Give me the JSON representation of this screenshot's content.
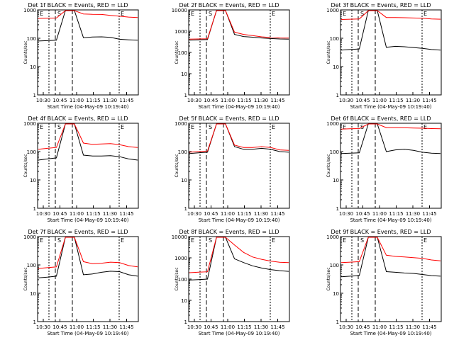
{
  "chart_data": [
    {
      "type": "line",
      "title": "Det 1f BLACK = Events, RED = LLD",
      "xlabel": "Start Time (04-May-09 10:19:40)",
      "ylabel": "Counts/sec",
      "yscale": "log",
      "ylim": [
        1,
        1000
      ],
      "xticks": [
        "10:30",
        "10:45",
        "11:00",
        "11:15",
        "11:30",
        "11:45"
      ],
      "yticks": [
        "1",
        "10",
        "100",
        "1000"
      ],
      "markers": [
        "E",
        "S",
        "E"
      ],
      "series": [
        {
          "color": "#000000",
          "values": [
            80,
            82,
            85,
            1200,
            1200,
            105,
            110,
            112,
            108,
            92,
            88,
            85
          ]
        },
        {
          "color": "#ff0000",
          "values": [
            500,
            510,
            520,
            1200,
            1200,
            720,
            700,
            690,
            640,
            600,
            560,
            540
          ]
        }
      ]
    },
    {
      "type": "line",
      "title": "Det 2f BLACK = Events, RED = LLD",
      "xlabel": "Start Time (04-May-09 10:19:40)",
      "ylabel": "Counts/sec",
      "yscale": "log",
      "ylim": [
        1,
        10000
      ],
      "xticks": [
        "10:30",
        "10:45",
        "11:00",
        "11:15",
        "11:30",
        "11:45"
      ],
      "yticks": [
        "1",
        "10",
        "100",
        "1000",
        "10000"
      ],
      "markers": [
        "E",
        "S",
        "E"
      ],
      "series": [
        {
          "color": "#000000",
          "values": [
            380,
            390,
            400,
            12000,
            12000,
            700,
            560,
            520,
            480,
            450,
            430,
            420
          ]
        },
        {
          "color": "#ff0000",
          "values": [
            420,
            430,
            440,
            12000,
            12000,
            900,
            700,
            620,
            540,
            500,
            480,
            470
          ]
        }
      ]
    },
    {
      "type": "line",
      "title": "Det 3f BLACK = Events, RED = LLD",
      "xlabel": "Start Time (04-May-09 10:19:40)",
      "ylabel": "Counts/sec",
      "yscale": "log",
      "ylim": [
        1,
        1000
      ],
      "xticks": [
        "10:30",
        "10:45",
        "11:00",
        "11:15",
        "11:30",
        "11:45"
      ],
      "yticks": [
        "1",
        "10",
        "100",
        "1000"
      ],
      "markers": [
        "E",
        "S",
        "E"
      ],
      "series": [
        {
          "color": "#000000",
          "values": [
            38,
            40,
            42,
            1200,
            1200,
            48,
            52,
            50,
            47,
            44,
            40,
            38
          ]
        },
        {
          "color": "#ff0000",
          "values": [
            460,
            470,
            480,
            1200,
            1200,
            540,
            540,
            530,
            520,
            510,
            480,
            470
          ]
        }
      ]
    },
    {
      "type": "line",
      "title": "Det 4f BLACK = Events, RED = LLD",
      "xlabel": "Start Time (04-May-09 10:19:40)",
      "ylabel": "Counts/sec",
      "yscale": "log",
      "ylim": [
        1,
        1000
      ],
      "xticks": [
        "10:30",
        "10:45",
        "11:00",
        "11:15",
        "11:30",
        "11:45"
      ],
      "yticks": [
        "1",
        "10",
        "100",
        "1000"
      ],
      "markers": [
        "E",
        "S",
        "E"
      ],
      "series": [
        {
          "color": "#000000",
          "values": [
            50,
            55,
            60,
            1200,
            1200,
            75,
            70,
            70,
            72,
            66,
            55,
            50
          ]
        },
        {
          "color": "#ff0000",
          "values": [
            120,
            130,
            140,
            1200,
            1200,
            200,
            180,
            185,
            190,
            175,
            150,
            140
          ]
        }
      ]
    },
    {
      "type": "line",
      "title": "Det 5f BLACK = Events, RED = LLD",
      "xlabel": "Start Time (04-May-09 10:19:40)",
      "ylabel": "Counts/sec",
      "yscale": "log",
      "ylim": [
        1,
        1000
      ],
      "xticks": [
        "10:30",
        "10:45",
        "11:00",
        "11:15",
        "11:30",
        "11:45"
      ],
      "yticks": [
        "1",
        "10",
        "100",
        "1000"
      ],
      "markers": [
        "E",
        "S",
        "E"
      ],
      "series": [
        {
          "color": "#000000",
          "values": [
            85,
            90,
            95,
            1200,
            1200,
            150,
            120,
            120,
            130,
            120,
            100,
            95
          ]
        },
        {
          "color": "#ff0000",
          "values": [
            95,
            100,
            105,
            1200,
            1200,
            170,
            140,
            140,
            150,
            140,
            115,
            110
          ]
        }
      ]
    },
    {
      "type": "line",
      "title": "Det 6f BLACK = Events, RED = LLD",
      "xlabel": "Start Time (04-May-09 10:19:40)",
      "ylabel": "Counts/sec",
      "yscale": "log",
      "ylim": [
        1,
        1000
      ],
      "xticks": [
        "10:30",
        "10:45",
        "11:00",
        "11:15",
        "11:30",
        "11:45"
      ],
      "yticks": [
        "1",
        "10",
        "100",
        "1000"
      ],
      "markers": [
        "E",
        "S",
        "E"
      ],
      "series": [
        {
          "color": "#000000",
          "values": [
            85,
            88,
            90,
            1200,
            1200,
            100,
            115,
            120,
            110,
            95,
            88,
            85
          ]
        },
        {
          "color": "#ff0000",
          "values": [
            620,
            640,
            650,
            1200,
            1200,
            700,
            700,
            690,
            680,
            670,
            650,
            640
          ]
        }
      ]
    },
    {
      "type": "line",
      "title": "Det 7f BLACK = Events, RED = LLD",
      "xlabel": "Start Time (04-May-09 10:19:40)",
      "ylabel": "Counts/sec",
      "yscale": "log",
      "ylim": [
        1,
        1000
      ],
      "xticks": [
        "10:30",
        "10:45",
        "11:00",
        "11:15",
        "11:30",
        "11:45"
      ],
      "yticks": [
        "1",
        "10",
        "100",
        "1000"
      ],
      "markers": [
        "E",
        "S",
        "E"
      ],
      "series": [
        {
          "color": "#000000",
          "values": [
            35,
            37,
            40,
            1200,
            1200,
            45,
            48,
            55,
            60,
            58,
            45,
            40
          ]
        },
        {
          "color": "#ff0000",
          "values": [
            75,
            80,
            85,
            1200,
            1200,
            130,
            110,
            115,
            125,
            120,
            95,
            85
          ]
        }
      ]
    },
    {
      "type": "line",
      "title": "Det 8f BLACK = Events, RED = LLD",
      "xlabel": "Start Time (04-May-09 10:19:40)",
      "ylabel": "Counts/sec",
      "yscale": "log",
      "ylim": [
        1,
        10000
      ],
      "xticks": [
        "10:30",
        "10:45",
        "11:00",
        "11:15",
        "11:30",
        "11:45"
      ],
      "yticks": [
        "1",
        "10",
        "100",
        "1000",
        "10000"
      ],
      "markers": [
        "E",
        "S",
        "E"
      ],
      "series": [
        {
          "color": "#000000",
          "values": [
            90,
            95,
            100,
            12000,
            12000,
            900,
            600,
            420,
            330,
            280,
            250,
            230
          ]
        },
        {
          "color": "#ff0000",
          "values": [
            200,
            210,
            220,
            12000,
            12000,
            4000,
            1800,
            1100,
            850,
            700,
            620,
            600
          ]
        }
      ]
    },
    {
      "type": "line",
      "title": "Det 9f BLACK = Events, RED = LLD",
      "xlabel": "Start Time (04-May-09 10:19:40)",
      "ylabel": "Counts/sec",
      "yscale": "log",
      "ylim": [
        1,
        1000
      ],
      "xticks": [
        "10:30",
        "10:45",
        "11:00",
        "11:15",
        "11:30",
        "11:45"
      ],
      "yticks": [
        "1",
        "10",
        "100",
        "1000"
      ],
      "markers": [
        "E",
        "S",
        "E"
      ],
      "series": [
        {
          "color": "#000000",
          "values": [
            38,
            40,
            42,
            1200,
            1200,
            58,
            55,
            52,
            50,
            46,
            42,
            40
          ]
        },
        {
          "color": "#ff0000",
          "values": [
            120,
            125,
            130,
            1200,
            1200,
            220,
            200,
            190,
            180,
            170,
            150,
            140
          ]
        }
      ]
    }
  ]
}
